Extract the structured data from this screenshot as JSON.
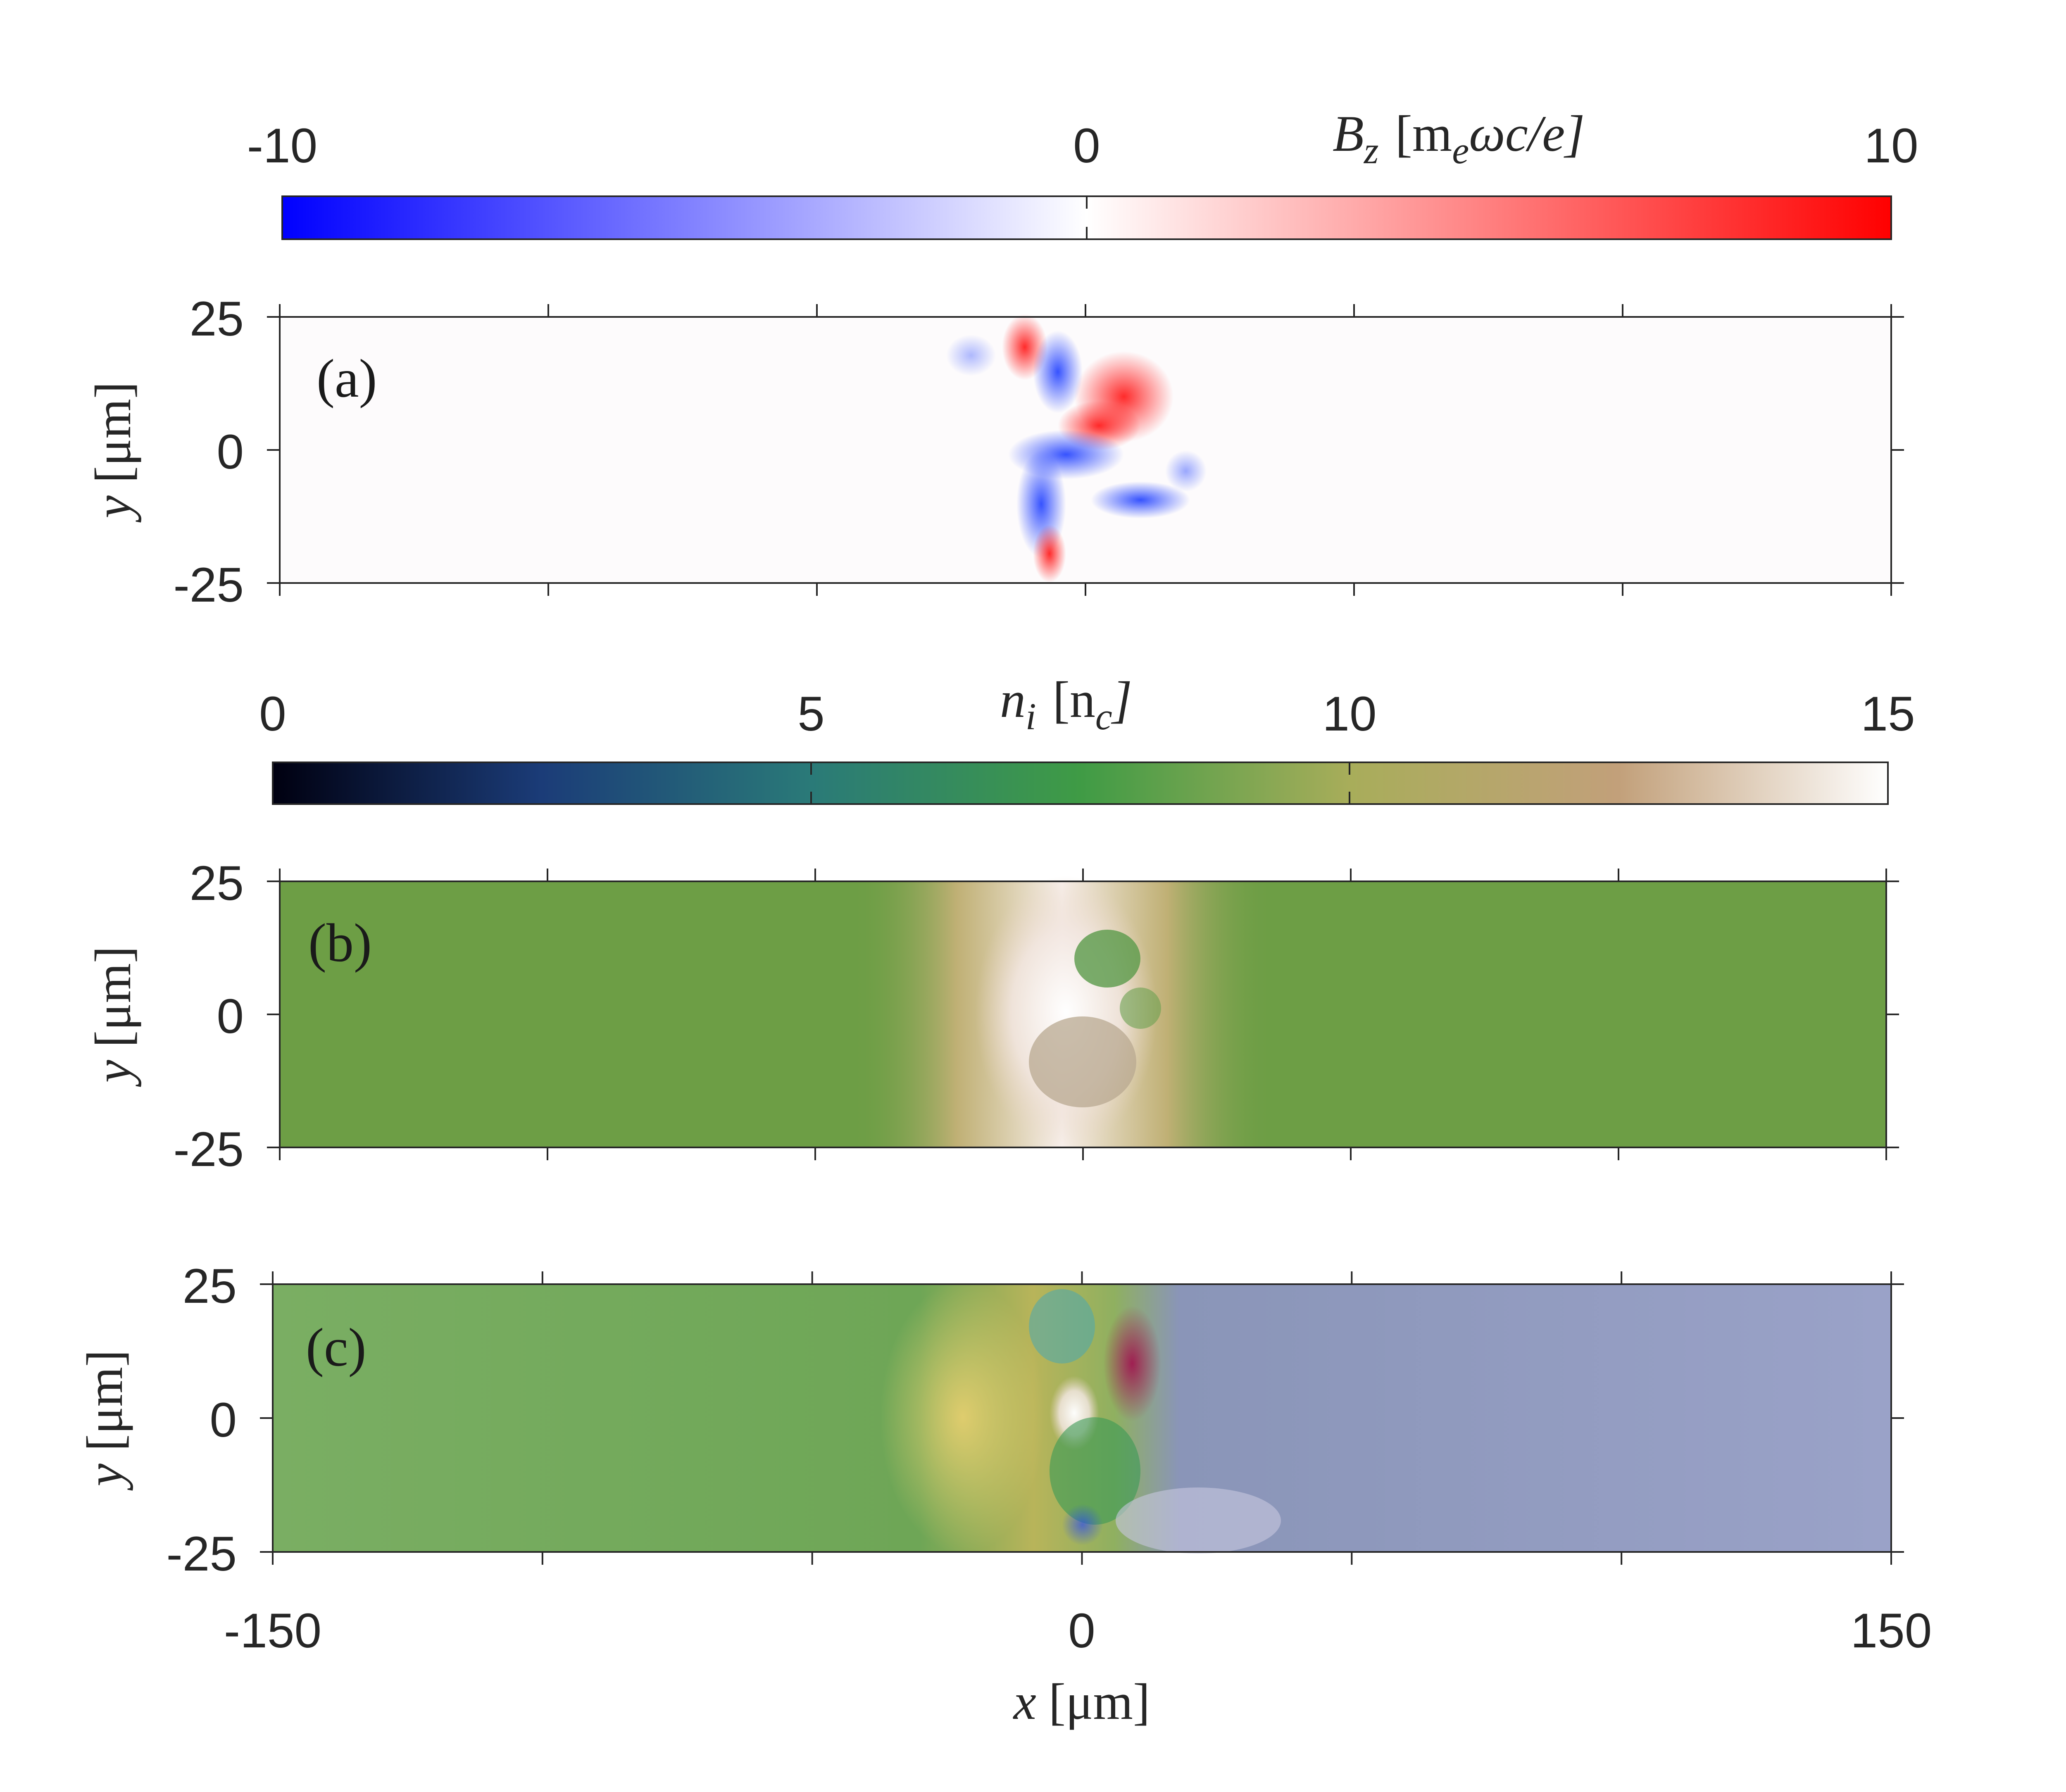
{
  "chart_data": [
    {
      "type": "heatmap",
      "panel_label": "(a)",
      "x_range": [
        -150,
        150
      ],
      "y_range": [
        -25,
        25
      ],
      "ylabel": {
        "var": "y",
        "unit": "[μm]"
      },
      "yticks": [
        "25",
        "0",
        "-25"
      ],
      "colorbar": {
        "label": {
          "var": "B",
          "sub": "z",
          "unit": "[m",
          "unit_sub": "e",
          "unit_rest": "ωc/e]"
        },
        "ticks": [
          "-10",
          "0",
          "10"
        ],
        "range": [
          -10,
          10
        ],
        "colors": [
          "#0000ff",
          "#ffffff",
          "#ff0000"
        ]
      }
    },
    {
      "type": "heatmap",
      "panel_label": "(b)",
      "x_range": [
        -150,
        150
      ],
      "y_range": [
        -25,
        25
      ],
      "ylabel": {
        "var": "y",
        "unit": "[μm]"
      },
      "yticks": [
        "25",
        "0",
        "-25"
      ],
      "colorbar": {
        "label": {
          "var": "n",
          "sub": "i",
          "unit": "[n",
          "unit_sub": "c",
          "unit_rest": "]"
        },
        "ticks": [
          "0",
          "5",
          "10",
          "15"
        ],
        "range": [
          0,
          15
        ],
        "colors": [
          "#000010",
          "#1b3c78",
          "#2a7a78",
          "#3f9b45",
          "#a8ad5a",
          "#c2a07a",
          "#ffffff"
        ]
      },
      "background": "#6d9e45"
    },
    {
      "type": "heatmap",
      "panel_label": "(c)",
      "x_range": [
        -150,
        150
      ],
      "y_range": [
        -25,
        25
      ],
      "ylabel": {
        "var": "y",
        "unit": "[μm]"
      },
      "yticks": [
        "25",
        "0",
        "-25"
      ],
      "xticks": [
        "-150",
        "0",
        "150"
      ],
      "xlabel": {
        "var": "x",
        "unit": "[μm]"
      },
      "left_color": "#7aae63",
      "right_color": "#9aa2c8"
    }
  ]
}
